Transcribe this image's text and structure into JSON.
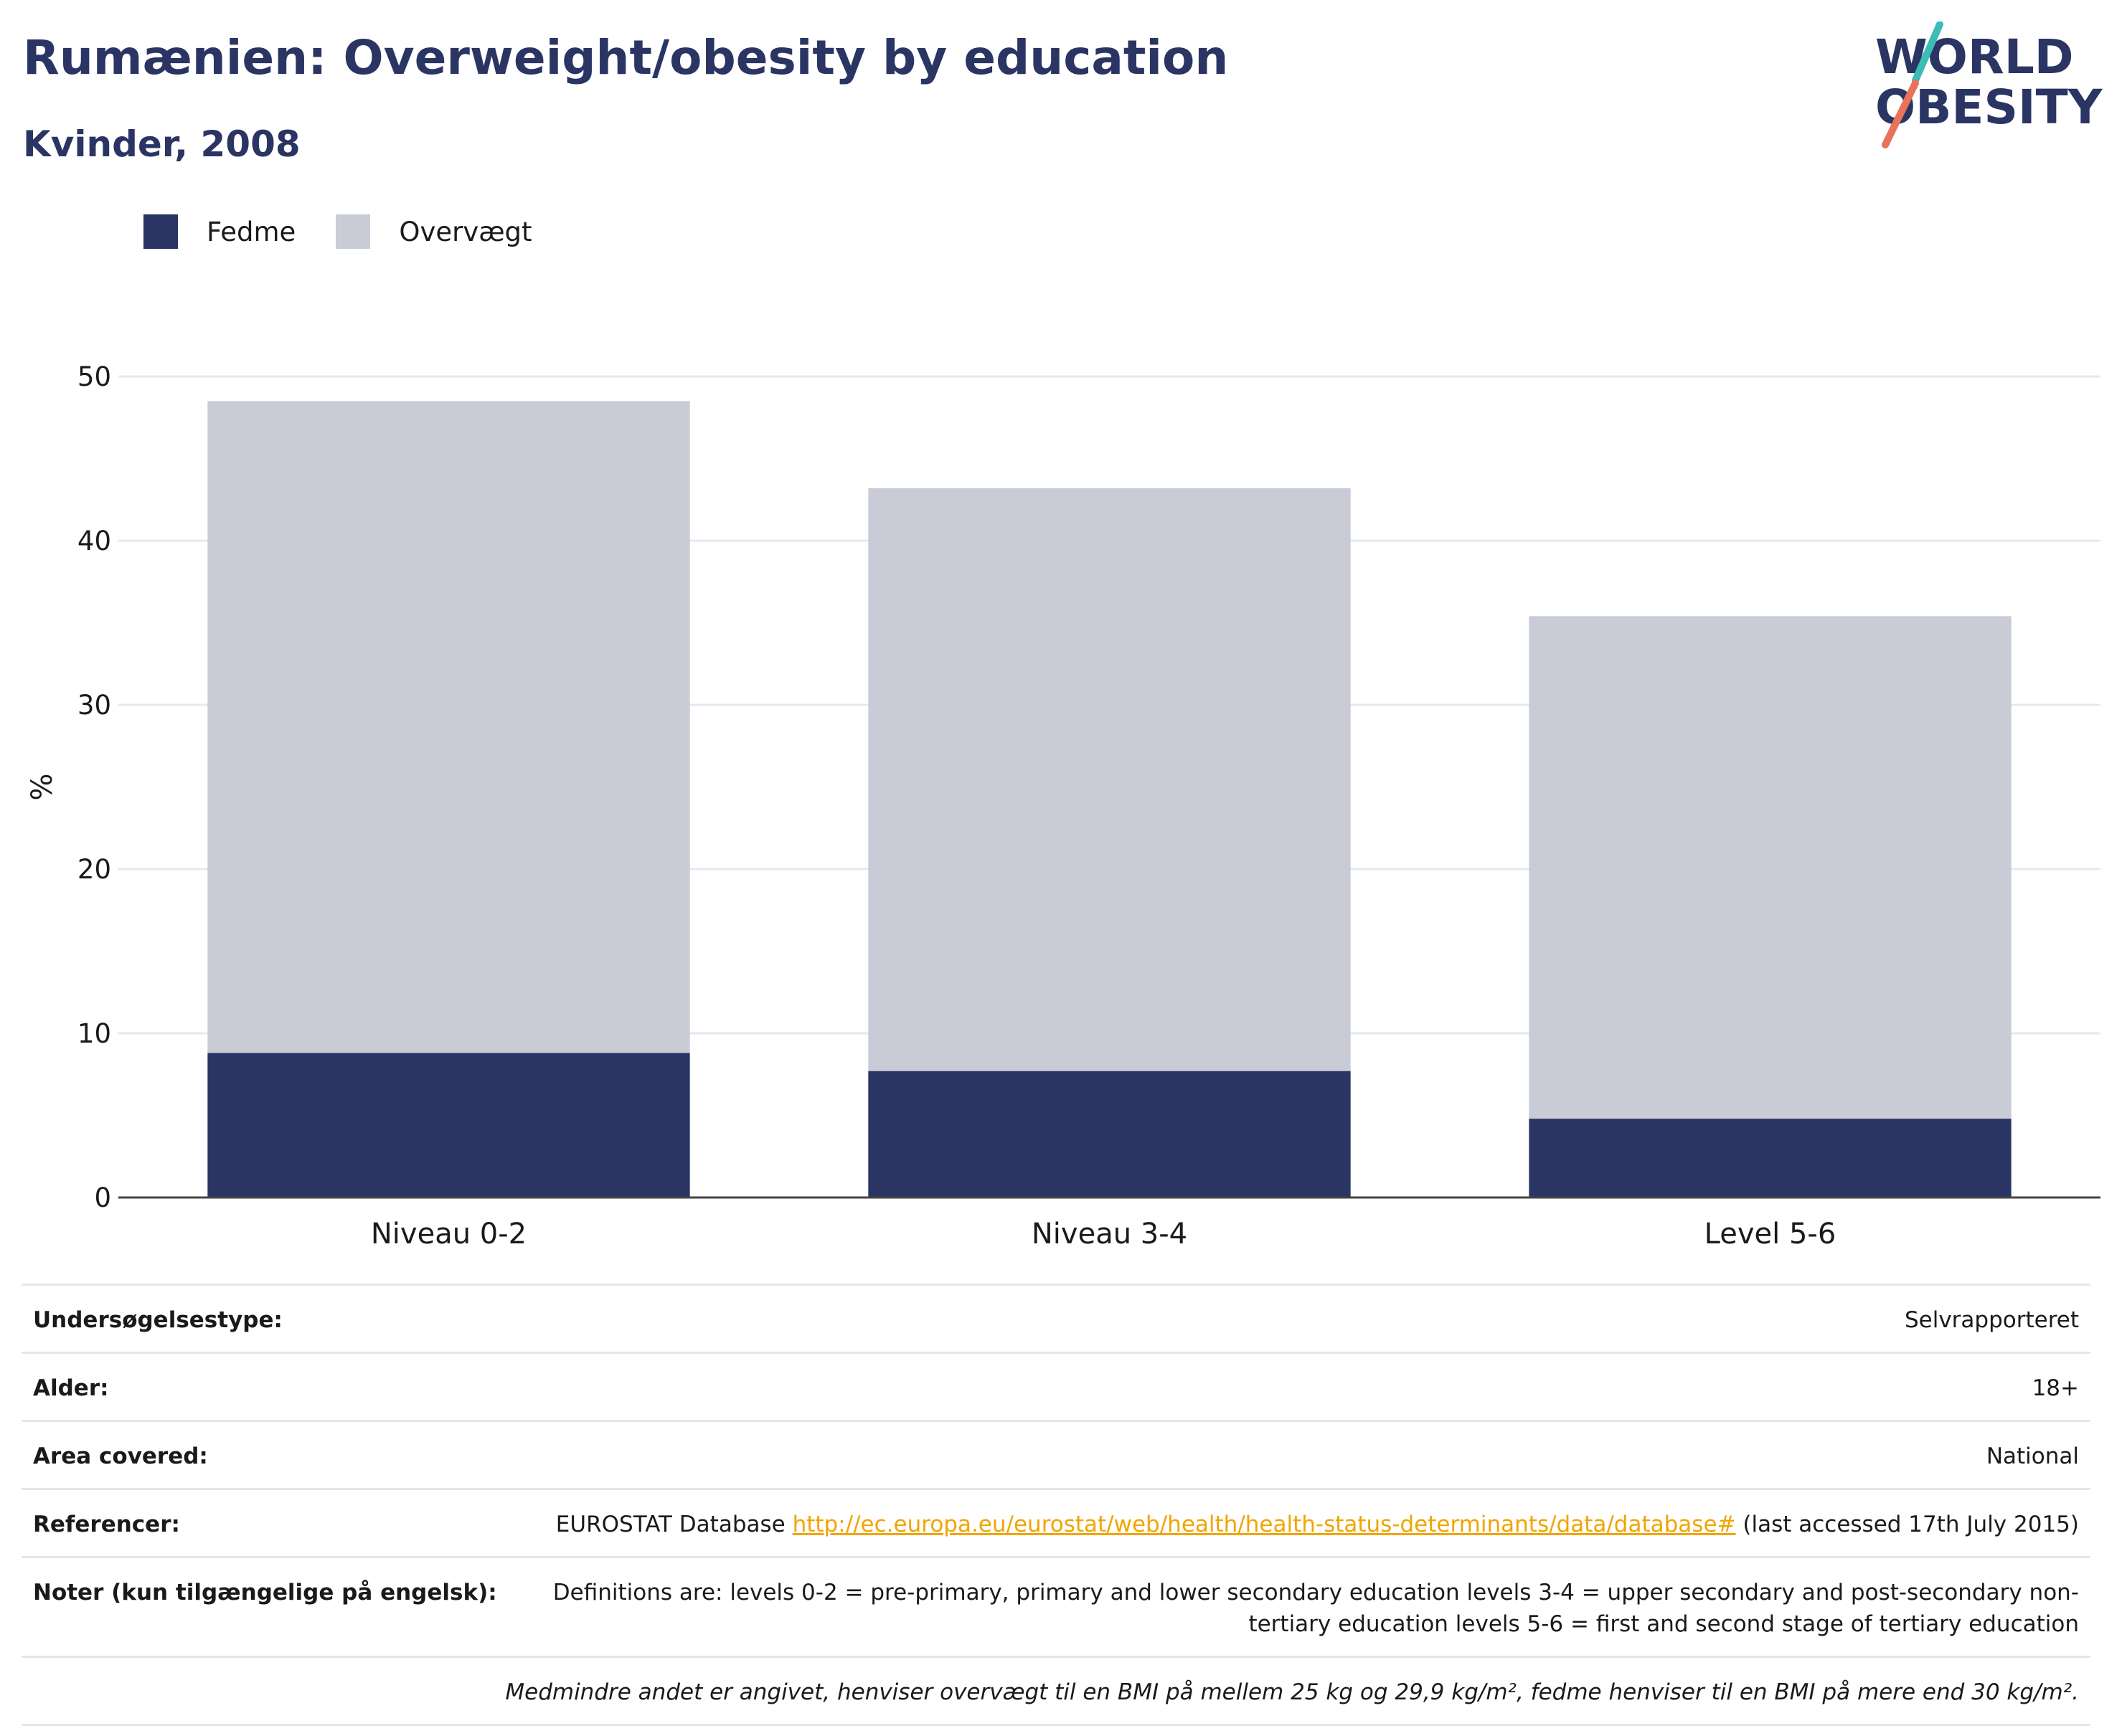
{
  "header": {
    "title": "Rumænien: Overweight/obesity by education",
    "subtitle": "Kvinder, 2008"
  },
  "logo": {
    "line1": "WORLD",
    "line2": "OBESITY"
  },
  "colors": {
    "fedme": "#2a3564",
    "overvaegt": "#c9cbd6",
    "title": "#2a3564",
    "link": "#f0a500",
    "logo_slash1": "#3cbcb4",
    "logo_slash2": "#e8735a"
  },
  "legend": [
    {
      "label": "Fedme",
      "color": "#2a3564"
    },
    {
      "label": "Overvægt",
      "color": "#c9cbd6"
    }
  ],
  "chart_data": {
    "type": "bar",
    "stacked": true,
    "categories": [
      "Niveau 0-2",
      "Niveau 3-4",
      "Level 5-6"
    ],
    "series": [
      {
        "name": "Fedme",
        "values": [
          8.8,
          7.7,
          4.8
        ]
      },
      {
        "name": "Overvægt",
        "values": [
          39.7,
          35.5,
          30.6
        ]
      }
    ],
    "ylabel": "%",
    "ylim": [
      0,
      50
    ],
    "yticks": [
      0,
      10,
      20,
      30,
      40,
      50
    ],
    "grid": true,
    "legend_position": "top-left"
  },
  "info": {
    "survey_type": {
      "label": "Undersøgelsestype:",
      "value": "Selvrapporteret"
    },
    "age": {
      "label": "Alder:",
      "value": "18+"
    },
    "area": {
      "label": "Area covered:",
      "value": "National"
    },
    "references": {
      "label": "Referencer:",
      "prefix": "EUROSTAT Database ",
      "link": "http://ec.europa.eu/eurostat/web/health/health-status-determinants/data/database#",
      "suffix": " (last accessed 17th July 2015)"
    },
    "notes": {
      "label": "Noter (kun tilgængelige på engelsk):",
      "value": "Definitions are: levels 0-2 = pre-primary, primary and lower secondary education levels 3-4 = upper secondary and post-secondary non-tertiary education levels 5-6 = first and second stage of tertiary education"
    },
    "footnote": "Medmindre andet er angivet, henviser overvægt til en BMI på mellem 25 kg og 29,9 kg/m², fedme henviser til en BMI på mere end 30 kg/m²."
  }
}
